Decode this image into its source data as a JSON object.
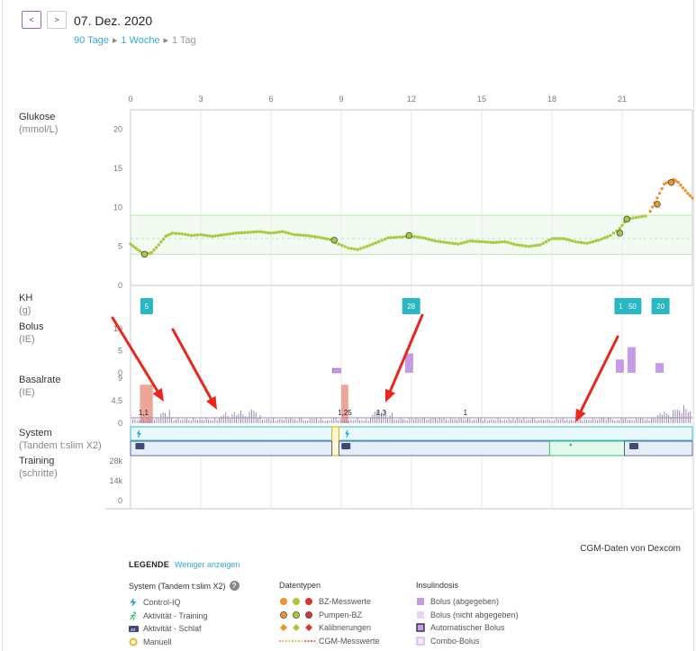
{
  "header": {
    "prev_label": "<",
    "next_label": ">",
    "date": "07. Dez. 2020",
    "ranges": [
      {
        "label": "90 Tage",
        "active": true
      },
      {
        "label": "1 Woche",
        "active": true
      },
      {
        "label": "1 Tag",
        "active": false
      }
    ]
  },
  "rows": {
    "glucose": {
      "label": "Glukose",
      "unit": "(mmol/L)"
    },
    "carbs": {
      "label": "KH",
      "unit": "(g)"
    },
    "bolus": {
      "label": "Bolus",
      "unit": "(IE)"
    },
    "basal": {
      "label": "Basalrate",
      "unit": "(IE)"
    },
    "system": {
      "label": "System",
      "unit": "(Tandem t:slim X2)"
    },
    "training": {
      "label": "Training",
      "unit": "(schritte)"
    }
  },
  "chart_data": {
    "type": "line",
    "x_ticks": [
      "0",
      "3",
      "6",
      "9",
      "12",
      "15",
      "18",
      "21"
    ],
    "glucose": {
      "y_ticks": [
        "20",
        "15",
        "10",
        "5",
        "0"
      ],
      "target_range": [
        4,
        9
      ],
      "target_line": 6,
      "cgm": [
        [
          0.0,
          5.3
        ],
        [
          0.3,
          4.6
        ],
        [
          0.6,
          4.0
        ],
        [
          0.9,
          4.2
        ],
        [
          1.2,
          5.2
        ],
        [
          1.5,
          6.3
        ],
        [
          1.8,
          6.7
        ],
        [
          2.2,
          6.6
        ],
        [
          2.6,
          6.4
        ],
        [
          3.0,
          6.5
        ],
        [
          3.5,
          6.3
        ],
        [
          4.0,
          6.5
        ],
        [
          4.5,
          6.7
        ],
        [
          5.0,
          6.8
        ],
        [
          5.5,
          6.9
        ],
        [
          6.0,
          6.7
        ],
        [
          6.5,
          6.9
        ],
        [
          7.0,
          6.5
        ],
        [
          7.5,
          6.4
        ],
        [
          8.0,
          6.2
        ],
        [
          8.5,
          5.9
        ],
        [
          8.9,
          5.3
        ],
        [
          9.3,
          4.8
        ],
        [
          9.7,
          4.6
        ],
        [
          10.1,
          5.0
        ],
        [
          10.6,
          5.6
        ],
        [
          11.0,
          6.1
        ],
        [
          11.5,
          6.2
        ],
        [
          12.0,
          6.3
        ],
        [
          12.5,
          6.1
        ],
        [
          13.0,
          5.7
        ],
        [
          13.5,
          5.5
        ],
        [
          14.0,
          5.3
        ],
        [
          14.5,
          5.7
        ],
        [
          15.0,
          5.6
        ],
        [
          15.5,
          5.5
        ],
        [
          16.0,
          5.6
        ],
        [
          16.5,
          5.2
        ],
        [
          17.0,
          5.0
        ],
        [
          17.5,
          5.2
        ],
        [
          18.0,
          6.0
        ],
        [
          18.5,
          6.0
        ],
        [
          19.0,
          5.6
        ],
        [
          19.5,
          5.4
        ],
        [
          20.0,
          5.8
        ],
        [
          20.5,
          6.4
        ],
        [
          20.9,
          7.3
        ],
        [
          21.2,
          8.5
        ],
        [
          21.6,
          8.7
        ],
        [
          22.0,
          8.9
        ]
      ],
      "cgm_high": [
        [
          22.2,
          9.5
        ],
        [
          22.4,
          10.6
        ],
        [
          22.6,
          11.8
        ],
        [
          22.8,
          13.0
        ],
        [
          23.0,
          13.3
        ],
        [
          23.2,
          13.6
        ],
        [
          23.4,
          13.2
        ],
        [
          23.6,
          12.5
        ],
        [
          23.8,
          11.8
        ],
        [
          24.0,
          11.2
        ]
      ],
      "bg_readings": [
        [
          0.6,
          4.0
        ],
        [
          8.7,
          5.8
        ],
        [
          11.9,
          6.4
        ],
        [
          20.9,
          6.7
        ],
        [
          21.2,
          8.5
        ],
        [
          22.5,
          10.4
        ],
        [
          23.1,
          13.2
        ]
      ]
    },
    "carbs": [
      {
        "hour": 0.65,
        "label": "5"
      },
      {
        "hour": 11.95,
        "label": "28"
      },
      {
        "hour": 20.9,
        "label": "1"
      },
      {
        "hour": 21.4,
        "label": "50"
      },
      {
        "hour": 22.6,
        "label": "20"
      }
    ],
    "bolus": {
      "y_ticks": [
        "10",
        "5",
        "0"
      ],
      "bars": [
        {
          "hour": 11.9,
          "value": 4.4
        },
        {
          "hour": 20.9,
          "value": 3.0
        },
        {
          "hour": 21.4,
          "value": 5.8
        },
        {
          "hour": 22.6,
          "value": 2.2
        }
      ],
      "small_bars": [
        {
          "hour": 8.8,
          "value": 0.5
        }
      ]
    },
    "basal": {
      "y_ticks": [
        "9",
        "4,5",
        "0"
      ],
      "manual_bars": [
        {
          "start": 0.4,
          "end": 0.95,
          "value": 7.7,
          "label": "1,1"
        },
        {
          "start": 9.0,
          "end": 9.3,
          "value": 7.7,
          "label": "1,25"
        }
      ],
      "rate_labels": [
        {
          "hour": 10.7,
          "label": "1,3"
        },
        {
          "hour": 14.3,
          "label": "1"
        }
      ]
    },
    "annotations": [
      {
        "type": "arrow",
        "from": [
          125,
          353
        ],
        "to": [
          182,
          446
        ]
      },
      {
        "type": "arrow",
        "from": [
          192,
          366
        ],
        "to": [
          241,
          455
        ]
      },
      {
        "type": "arrow",
        "from": [
          469,
          350
        ],
        "to": [
          428,
          447
        ]
      },
      {
        "type": "arrow",
        "from": [
          686,
          374
        ],
        "to": [
          639,
          469
        ]
      }
    ],
    "training": {
      "y_ticks": [
        "28k",
        "14k",
        "0"
      ]
    }
  },
  "dexcom": "CGM-Daten von Dexcom",
  "legend": {
    "title": "LEGENDE",
    "toggle": "Weniger anzeigen",
    "system": {
      "head": "System (Tandem t:slim X2)",
      "help": "?",
      "items": [
        "Control-IQ",
        "Aktivität - Training",
        "Aktivität - Schlaf",
        "Manuell"
      ]
    },
    "datatypes": {
      "head": "Datentypen",
      "items": [
        "BZ-Messwerte",
        "Pumpen-BZ",
        "Kalibrierungen",
        "CGM-Messwerte"
      ]
    },
    "insulin": {
      "head": "Insulindosis",
      "items": [
        "Bolus (abgegeben)",
        "Bolus (nicht abgegeben)",
        "Automatischer Bolus",
        "Combo-Bolus"
      ]
    }
  },
  "colors": {
    "cgm": "#a8c93a",
    "cgm_high": "#f0922e",
    "carbs": "#29b8c2",
    "bolus": "#c79ae8",
    "manual": "#eda598",
    "basal_auto": "#9e8cb8",
    "control_iq": "#e9f9fc",
    "training": "#e5f8ee",
    "training_line": "#3cc27a",
    "arrow": "#e8281e",
    "link": "#33aadd"
  }
}
